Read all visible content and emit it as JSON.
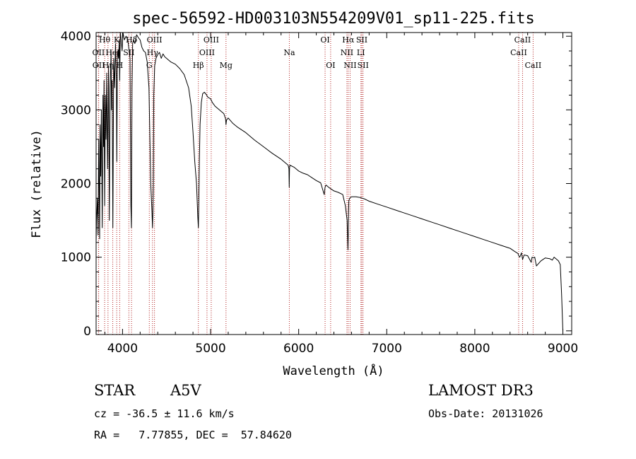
{
  "chart_data": {
    "type": "line",
    "title": "spec-56592-HD003103N554209V01_sp11-225.fits",
    "xlabel": "Wavelength (Å)",
    "ylabel": "Flux (relative)",
    "xlim": [
      3700,
      9100
    ],
    "ylim": [
      -50,
      4050
    ],
    "xticks": [
      4000,
      5000,
      6000,
      7000,
      8000,
      9000
    ],
    "yticks": [
      0,
      1000,
      2000,
      3000,
      4000
    ],
    "xtick_labels": [
      "4000",
      "5000",
      "6000",
      "7000",
      "8000",
      "9000"
    ],
    "ytick_labels": [
      "0",
      "1000",
      "2000",
      "3000",
      "4000"
    ],
    "series": [
      {
        "name": "flux",
        "x": [
          3700,
          3705,
          3715,
          3722,
          3730,
          3740,
          3745,
          3752,
          3760,
          3770,
          3778,
          3785,
          3790,
          3797,
          3805,
          3812,
          3820,
          3830,
          3835,
          3842,
          3850,
          3860,
          3870,
          3875,
          3882,
          3890,
          3900,
          3910,
          3920,
          3930,
          3935,
          3942,
          3955,
          3962,
          3968,
          3975,
          3985,
          3995,
          4005,
          4020,
          4040,
          4060,
          4085,
          4095,
          4101,
          4108,
          4115,
          4125,
          4140,
          4160,
          4180,
          4200,
          4220,
          4240,
          4260,
          4280,
          4300,
          4320,
          4335,
          4340,
          4345,
          4350,
          4355,
          4365,
          4380,
          4400,
          4420,
          4440,
          4460,
          4480,
          4500,
          4550,
          4600,
          4650,
          4700,
          4750,
          4780,
          4800,
          4820,
          4840,
          4850,
          4855,
          4861,
          4866,
          4872,
          4880,
          4895,
          4910,
          4930,
          4950,
          4970,
          5000,
          5020,
          5050,
          5100,
          5150,
          5170,
          5175,
          5180,
          5200,
          5250,
          5300,
          5400,
          5500,
          5600,
          5700,
          5800,
          5880,
          5890,
          5893,
          5896,
          5900,
          5950,
          6000,
          6050,
          6100,
          6150,
          6200,
          6250,
          6290,
          6300,
          6310,
          6350,
          6400,
          6450,
          6500,
          6530,
          6550,
          6555,
          6560,
          6563,
          6566,
          6570,
          6580,
          6600,
          6650,
          6700,
          6750,
          6800,
          6900,
          7000,
          7100,
          7200,
          7300,
          7400,
          7500,
          7600,
          7700,
          7800,
          7900,
          8000,
          8100,
          8200,
          8300,
          8400,
          8450,
          8490,
          8498,
          8510,
          8530,
          8542,
          8560,
          8600,
          8640,
          8650,
          8662,
          8680,
          8700,
          8750,
          8800,
          8850,
          8880,
          8900,
          8920,
          8950,
          8970,
          8985,
          9000
        ],
        "y": [
          1200,
          1500,
          1800,
          1300,
          2600,
          1250,
          2800,
          2100,
          3000,
          1400,
          3200,
          2500,
          3400,
          1700,
          3200,
          2600,
          3500,
          2200,
          2800,
          3600,
          1500,
          3300,
          3800,
          3000,
          3400,
          1400,
          3700,
          3300,
          3900,
          3400,
          2300,
          3800,
          3700,
          3950,
          3400,
          4050,
          3950,
          3800,
          4050,
          3950,
          4000,
          3950,
          3700,
          1700,
          1400,
          3300,
          3900,
          3950,
          3900,
          4020,
          3980,
          3950,
          3850,
          3800,
          3780,
          3650,
          3300,
          2000,
          1600,
          1400,
          1600,
          2000,
          3200,
          3600,
          3700,
          3750,
          3780,
          3700,
          3760,
          3720,
          3700,
          3650,
          3620,
          3560,
          3480,
          3300,
          3050,
          2700,
          2300,
          2000,
          1700,
          1550,
          1400,
          1700,
          2300,
          2800,
          3100,
          3220,
          3240,
          3210,
          3170,
          3150,
          3100,
          3050,
          3000,
          2950,
          2880,
          2800,
          2860,
          2890,
          2820,
          2770,
          2690,
          2590,
          2500,
          2410,
          2330,
          2250,
          2200,
          1950,
          2200,
          2250,
          2220,
          2170,
          2140,
          2120,
          2080,
          2040,
          2010,
          1850,
          1950,
          1980,
          1940,
          1900,
          1880,
          1850,
          1700,
          1500,
          1300,
          1100,
          1300,
          1600,
          1770,
          1800,
          1820,
          1820,
          1810,
          1790,
          1760,
          1720,
          1680,
          1640,
          1600,
          1560,
          1520,
          1480,
          1440,
          1400,
          1360,
          1320,
          1280,
          1240,
          1200,
          1160,
          1120,
          1080,
          1050,
          1020,
          1000,
          1060,
          970,
          1030,
          1020,
          930,
          1000,
          990,
          1000,
          880,
          950,
          990,
          980,
          960,
          1000,
          980,
          950,
          900,
          500,
          0
        ]
      }
    ],
    "spectral_lines": [
      {
        "label": "Hθ",
        "x": 3797,
        "row": 1
      },
      {
        "label": "OII",
        "x": 3727,
        "row": 2
      },
      {
        "label": "OII",
        "x": 3729,
        "row": 3
      },
      {
        "label": "Hη",
        "x": 3835,
        "row": 3
      },
      {
        "label": "HeI",
        "x": 3889,
        "row": 2
      },
      {
        "label": "K",
        "x": 3934,
        "row": 1
      },
      {
        "label": "H",
        "x": 3968,
        "row": 3
      },
      {
        "label": "SII",
        "x": 4072,
        "row": 2
      },
      {
        "label": "Hδ",
        "x": 4102,
        "row": 1
      },
      {
        "label": "G",
        "x": 4304,
        "row": 3
      },
      {
        "label": "Hγ",
        "x": 4340,
        "row": 2
      },
      {
        "label": "OIII",
        "x": 4363,
        "row": 1
      },
      {
        "label": "Hβ",
        "x": 4861,
        "row": 3
      },
      {
        "label": "OIII",
        "x": 4959,
        "row": 2
      },
      {
        "label": "OIII",
        "x": 5007,
        "row": 1
      },
      {
        "label": "Mg",
        "x": 5175,
        "row": 3
      },
      {
        "label": "Na",
        "x": 5894,
        "row": 2
      },
      {
        "label": "OI",
        "x": 6300,
        "row": 1
      },
      {
        "label": "OI",
        "x": 6363,
        "row": 3
      },
      {
        "label": "NII",
        "x": 6548,
        "row": 2
      },
      {
        "label": "Hα",
        "x": 6563,
        "row": 1
      },
      {
        "label": "NII",
        "x": 6584,
        "row": 3
      },
      {
        "label": "LI",
        "x": 6707,
        "row": 2
      },
      {
        "label": "SII",
        "x": 6717,
        "row": 1
      },
      {
        "label": "SII",
        "x": 6731,
        "row": 3
      },
      {
        "label": "CaII",
        "x": 8498,
        "row": 2
      },
      {
        "label": "CaII",
        "x": 8542,
        "row": 1
      },
      {
        "label": "CaII",
        "x": 8662,
        "row": 3
      }
    ]
  },
  "info": {
    "object_type": "STAR",
    "subclass": "A5V",
    "survey": "LAMOST DR3",
    "cz": "cz = -36.5 ± 11.6 km/s",
    "obs_date": "Obs-Date: 20131026",
    "coords": "RA =   7.77855, DEC =  57.84620"
  },
  "colors": {
    "spectrum": "#000000",
    "line_marker": "#b22222",
    "axes": "#000000",
    "background": "#ffffff"
  }
}
